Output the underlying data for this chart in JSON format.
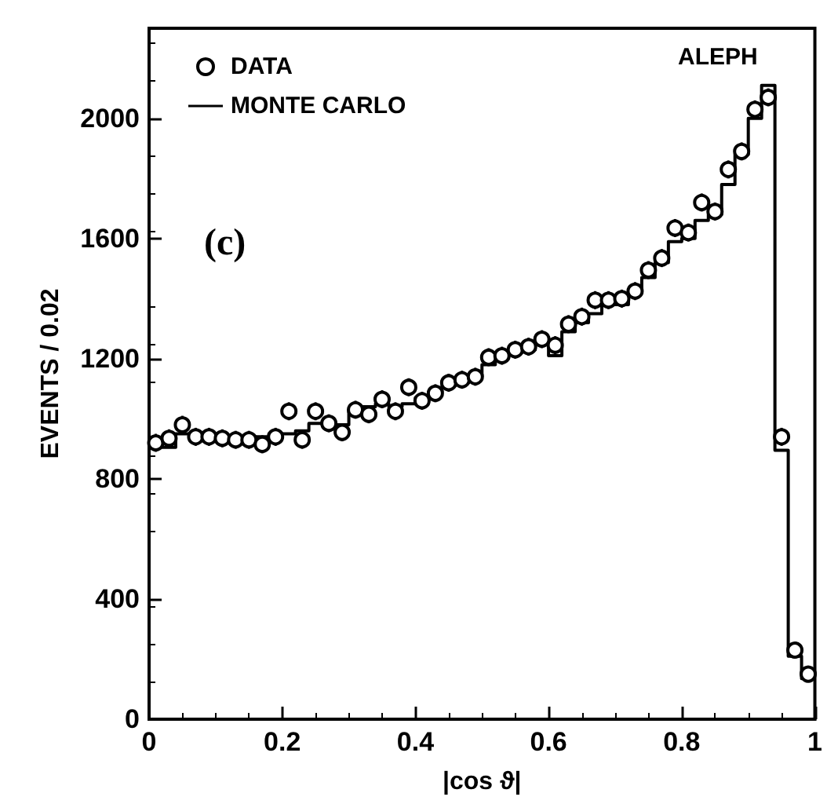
{
  "chart_data": {
    "type": "scatter",
    "xlabel": "|cos ϑ|",
    "ylabel": "EVENTS / 0.02",
    "xlim": [
      0,
      1
    ],
    "xticks": [
      0,
      0.2,
      0.4,
      0.6,
      0.8,
      1
    ],
    "ylim": [
      0,
      2300
    ],
    "yticks": [
      0,
      400,
      800,
      1200,
      1600,
      2000
    ],
    "legend": "top left",
    "grid": false,
    "annotations": [
      "ALEPH",
      "(c)"
    ],
    "x": [
      0.01,
      0.03,
      0.05,
      0.07,
      0.09,
      0.11,
      0.13,
      0.15,
      0.17,
      0.19,
      0.21,
      0.23,
      0.25,
      0.27,
      0.29,
      0.31,
      0.33,
      0.35,
      0.37,
      0.39,
      0.41,
      0.43,
      0.45,
      0.47,
      0.49,
      0.51,
      0.53,
      0.55,
      0.57,
      0.59,
      0.61,
      0.63,
      0.65,
      0.67,
      0.69,
      0.71,
      0.73,
      0.75,
      0.77,
      0.79,
      0.81,
      0.83,
      0.85,
      0.87,
      0.89,
      0.91,
      0.93,
      0.95,
      0.97,
      0.99
    ],
    "series": [
      {
        "name": "DATA",
        "marker": "circle",
        "color": "#000000",
        "values": [
          920,
          935,
          980,
          940,
          940,
          935,
          930,
          930,
          915,
          940,
          1025,
          930,
          1025,
          985,
          955,
          1030,
          1015,
          1065,
          1025,
          1105,
          1060,
          1085,
          1120,
          1130,
          1140,
          1205,
          1210,
          1230,
          1240,
          1265,
          1245,
          1315,
          1340,
          1395,
          1395,
          1400,
          1425,
          1495,
          1535,
          1635,
          1620,
          1720,
          1690,
          1830,
          1890,
          2030,
          2070,
          940,
          230,
          150
        ],
        "errors": [
          30,
          30,
          30,
          30,
          30,
          30,
          30,
          30,
          30,
          30,
          30,
          30,
          30,
          30,
          30,
          30,
          30,
          30,
          30,
          30,
          30,
          30,
          30,
          30,
          30,
          30,
          30,
          30,
          30,
          30,
          30,
          30,
          30,
          30,
          30,
          30,
          30,
          30,
          30,
          30,
          30,
          30,
          30,
          30,
          30,
          30,
          30,
          30,
          null,
          null
        ]
      },
      {
        "name": "MONTE CARLO",
        "type": "histogram",
        "color": "#000000",
        "line_style": "solid",
        "bins": [
          0,
          0.02,
          0.04,
          0.06,
          0.08,
          0.1,
          0.12,
          0.14,
          0.16,
          0.18,
          0.2,
          0.22,
          0.24,
          0.26,
          0.28,
          0.3,
          0.32,
          0.34,
          0.36,
          0.38,
          0.4,
          0.42,
          0.44,
          0.46,
          0.48,
          0.5,
          0.52,
          0.54,
          0.56,
          0.58,
          0.6,
          0.62,
          0.64,
          0.66,
          0.68,
          0.7,
          0.72,
          0.74,
          0.76,
          0.78,
          0.8,
          0.82,
          0.84,
          0.86,
          0.88,
          0.9,
          0.92,
          0.94,
          0.96,
          0.98,
          1
        ],
        "values": [
          920,
          905,
          950,
          945,
          940,
          935,
          935,
          935,
          940,
          950,
          950,
          960,
          985,
          985,
          980,
          1030,
          1040,
          1050,
          1040,
          1050,
          1070,
          1090,
          1110,
          1120,
          1140,
          1180,
          1200,
          1220,
          1230,
          1250,
          1210,
          1290,
          1320,
          1350,
          1380,
          1380,
          1420,
          1470,
          1520,
          1590,
          1600,
          1660,
          1680,
          1780,
          1880,
          2000,
          2110,
          895,
          210,
          135
        ]
      }
    ]
  }
}
